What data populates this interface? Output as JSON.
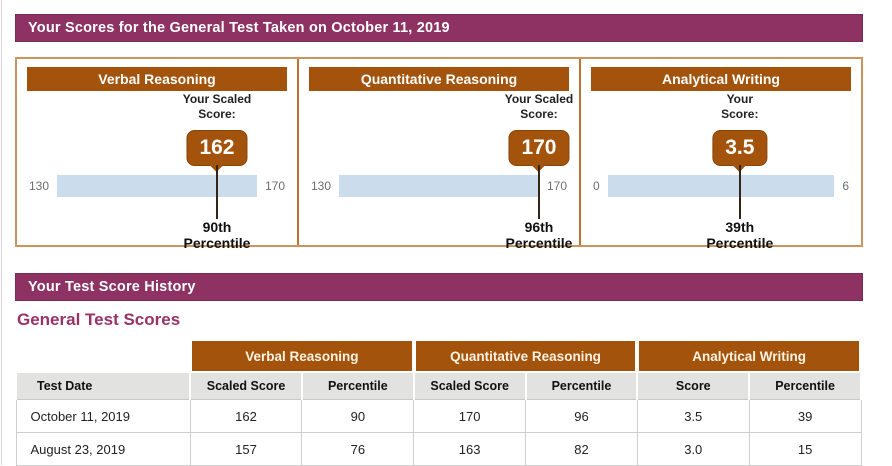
{
  "page": {
    "scores_header": "Your Scores for the General Test Taken on October 11, 2019",
    "history_header": "Your Test Score History",
    "general_title": "General Test Scores"
  },
  "colors": {
    "maroon": "#8e3264",
    "brown": "#a3530b",
    "panel_border_tan": "#c9955c",
    "bar_track_blue": "#cbdced",
    "table_subheader_gray": "#e2e2e0"
  },
  "panels": [
    {
      "title": "Verbal Reasoning",
      "score_label_line1": "Your Scaled",
      "score_label_line2": "Score:",
      "score": "162",
      "scale_min": "130",
      "scale_max": "170",
      "marker_percent": 80,
      "percentile_line1": "90th",
      "percentile_line2": "Percentile"
    },
    {
      "title": "Quantitative Reasoning",
      "score_label_line1": "Your Scaled",
      "score_label_line2": "Score:",
      "score": "170",
      "scale_min": "130",
      "scale_max": "170",
      "marker_percent": 100,
      "percentile_line1": "96th",
      "percentile_line2": "Percentile"
    },
    {
      "title": "Analytical Writing",
      "score_label_line1": "Your",
      "score_label_line2": "Score:",
      "score": "3.5",
      "scale_min": "0",
      "scale_max": "6",
      "marker_percent": 58.3,
      "percentile_line1": "39th",
      "percentile_line2": "Percentile"
    }
  ],
  "table": {
    "group_headers": [
      "Verbal Reasoning",
      "Quantitative Reasoning",
      "Analytical Writing"
    ],
    "sub_headers": [
      "Test Date",
      "Scaled Score",
      "Percentile",
      "Scaled Score",
      "Percentile",
      "Score",
      "Percentile"
    ],
    "rows": [
      {
        "date": "October 11, 2019",
        "values": [
          "162",
          "90",
          "170",
          "96",
          "3.5",
          "39"
        ]
      },
      {
        "date": "August 23, 2019",
        "values": [
          "157",
          "76",
          "163",
          "82",
          "3.0",
          "15"
        ]
      }
    ]
  }
}
